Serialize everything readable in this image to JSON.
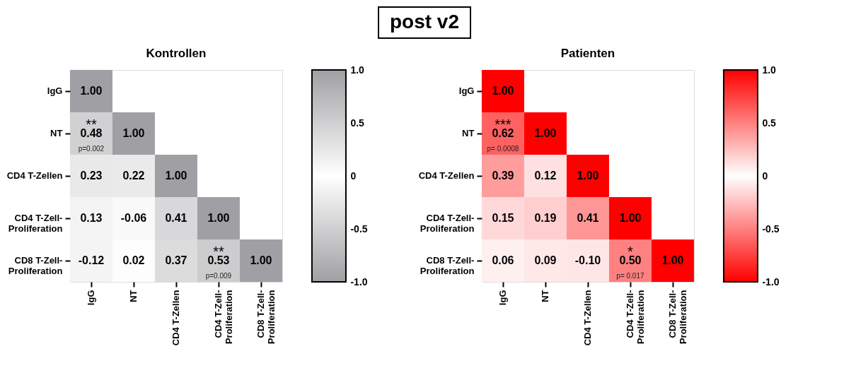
{
  "chart_data": [
    {
      "type": "heatmap",
      "title": "Kontrollen",
      "categories": [
        "IgG",
        "NT",
        "CD4 T-Zellen",
        "CD4 T-Zell-\nProliferation",
        "CD8 T-Zell-\nProliferation"
      ],
      "y_categories": [
        "IgG",
        "NT",
        "CD4 T-Zellen",
        "CD4 T-Zell-\nProliferation",
        "CD8 T-Zell-\nProliferation"
      ],
      "cells": [
        [
          1.0,
          null,
          null,
          null,
          null
        ],
        [
          0.48,
          1.0,
          null,
          null,
          null
        ],
        [
          0.23,
          0.22,
          1.0,
          null,
          null
        ],
        [
          0.13,
          -0.06,
          0.41,
          1.0,
          null
        ],
        [
          -0.12,
          0.02,
          0.37,
          0.53,
          1.0
        ]
      ],
      "cell_labels": [
        [
          "1.00",
          null,
          null,
          null,
          null
        ],
        [
          "**\n0.48\np=0.002",
          "1.00",
          null,
          null,
          null
        ],
        [
          "0.23",
          "0.22",
          "1.00",
          null,
          null
        ],
        [
          "0.13",
          "-0.06",
          "0.41",
          "1.00",
          null
        ],
        [
          "-0.12",
          "0.02",
          "0.37",
          "**\n0.53\np=0.009",
          "1.00"
        ]
      ],
      "colors": [
        "#a0a0a4",
        "#ffffff",
        "#a0a0a4"
      ],
      "clim": [
        -1,
        1
      ],
      "cticks": [
        {
          "value": 1,
          "label": "1.0"
        },
        {
          "value": 0.5,
          "label": "0.5"
        },
        0,
        {
          "value": -0.5,
          "label": "-0.5"
        },
        {
          "value": -1,
          "label": "-1.0"
        }
      ],
      "annotations": [
        "post v2"
      ]
    },
    {
      "type": "heatmap",
      "title": "Patienten",
      "categories": [
        "IgG",
        "NT",
        "CD4 T-Zellen",
        "CD4 T-Zell-\nProliferation",
        "CD8 T-Zell-\nProliferation"
      ],
      "y_categories": [
        "IgG",
        "NT",
        "CD4 T-Zellen",
        "CD4 T-Zell-\nProliferation",
        "CD8 T-Zell-\nProliferation"
      ],
      "cells": [
        [
          1.0,
          null,
          null,
          null,
          null
        ],
        [
          0.62,
          1.0,
          null,
          null,
          null
        ],
        [
          0.39,
          0.12,
          1.0,
          null,
          null
        ],
        [
          0.15,
          0.19,
          0.41,
          1.0,
          null
        ],
        [
          0.06,
          0.09,
          -0.1,
          0.5,
          1.0
        ]
      ],
      "cell_labels": [
        [
          "1.00",
          null,
          null,
          null,
          null
        ],
        [
          "***\n0.62\np= 0.0008",
          "1.00",
          null,
          null,
          null
        ],
        [
          "0.39",
          "0.12",
          "1.00",
          null,
          null
        ],
        [
          "0.15",
          "0.19",
          "0.41",
          "1.00",
          null
        ],
        [
          "0.06",
          "0.09",
          "-0.10",
          "*\n0.50\np= 0.017",
          "1.00"
        ]
      ],
      "colors": [
        "#ff0000",
        "#ffffff",
        "#ff0000"
      ],
      "clim": [
        -1,
        1
      ],
      "cticks": [
        {
          "value": 1,
          "label": "1.0"
        },
        {
          "value": 0.5,
          "label": "0.5"
        },
        0,
        {
          "value": -0.5,
          "label": "-0.5"
        },
        {
          "value": -1,
          "label": "-1.0"
        }
      ]
    }
  ]
}
